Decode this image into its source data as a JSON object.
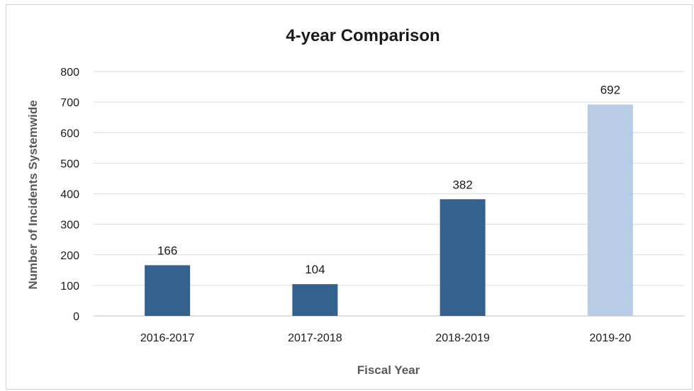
{
  "chart_data": {
    "type": "bar",
    "title": "4-year Comparison",
    "xlabel": "Fiscal Year",
    "ylabel": "Number of Incidents Systemwide",
    "categories": [
      "2016-2017",
      "2017-2018",
      "2018-2019",
      "2019-20"
    ],
    "values": [
      166,
      104,
      382,
      692
    ],
    "data_labels": [
      "166",
      "104",
      "382",
      "692"
    ],
    "ylim": [
      0,
      800
    ],
    "yticks": [
      0,
      100,
      200,
      300,
      400,
      500,
      600,
      700,
      800
    ],
    "ytick_labels": [
      "0",
      "100",
      "200",
      "300",
      "400",
      "500",
      "600",
      "700",
      "800"
    ],
    "grid": true,
    "legend": "none",
    "colors": [
      "#35618f",
      "#35618f",
      "#35618f",
      "#b8cde5"
    ]
  }
}
